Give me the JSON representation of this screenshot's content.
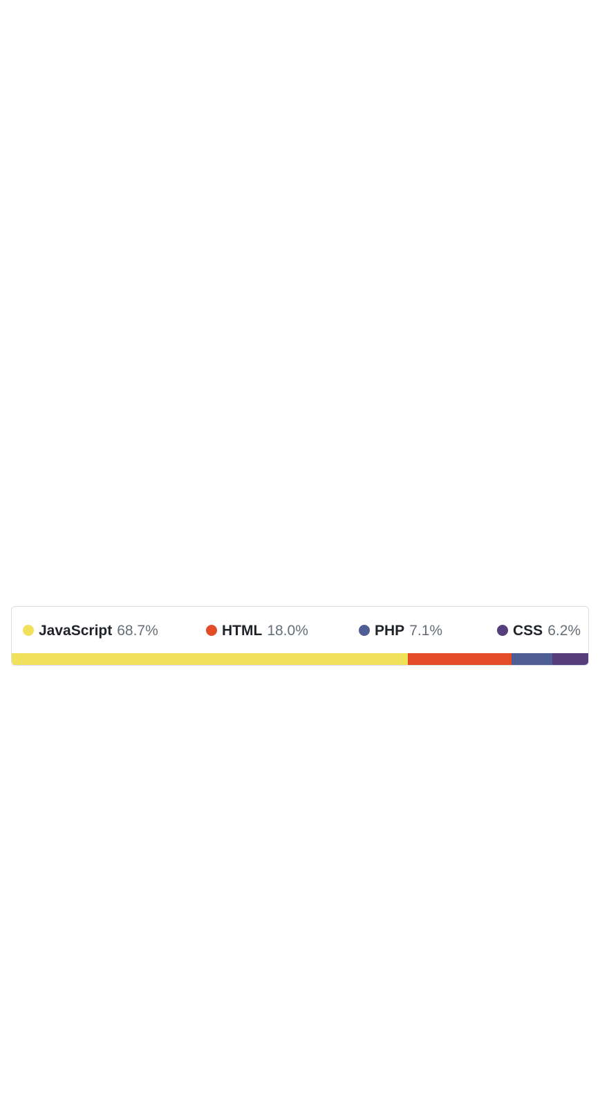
{
  "languages": [
    {
      "name": "JavaScript",
      "percent_label": "68.7%",
      "percent": 68.7,
      "color": "#f1e05a",
      "key": "js"
    },
    {
      "name": "HTML",
      "percent_label": "18.0%",
      "percent": 18.0,
      "color": "#e34c26",
      "key": "html"
    },
    {
      "name": "PHP",
      "percent_label": "7.1%",
      "percent": 7.1,
      "color": "#4f5d95",
      "key": "php"
    },
    {
      "name": "CSS",
      "percent_label": "6.2%",
      "percent": 6.2,
      "color": "#563d7c",
      "key": "css"
    }
  ]
}
